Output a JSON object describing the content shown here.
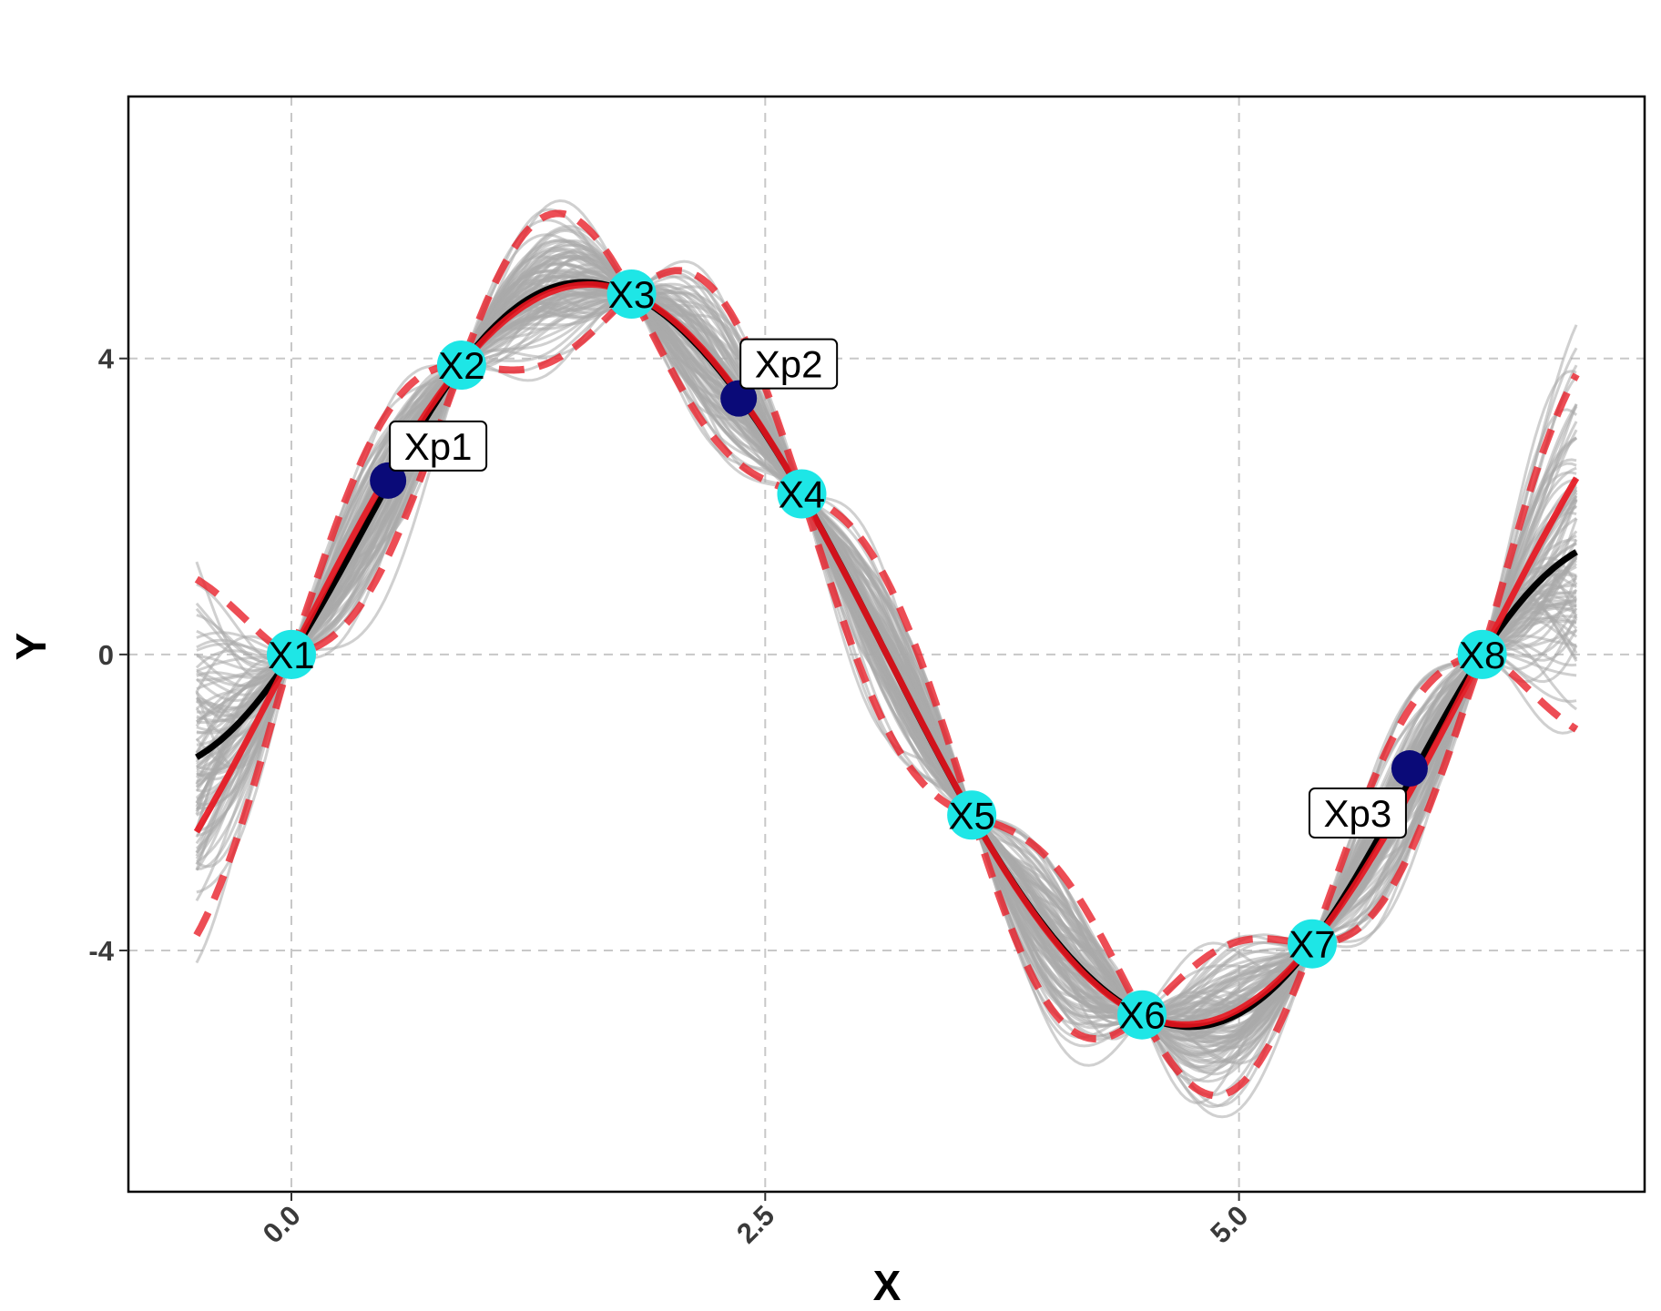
{
  "chart_data": {
    "type": "line",
    "title": "",
    "xlabel": "X",
    "ylabel": "Y",
    "xlim": [
      -0.86,
      7.14
    ],
    "ylim": [
      -7.26,
      7.54
    ],
    "grid": true,
    "x_ticks": [
      {
        "value": 0,
        "label": "0.0"
      },
      {
        "value": 2.5,
        "label": "2.5"
      },
      {
        "value": 5,
        "label": "5.0"
      }
    ],
    "y_ticks": [
      {
        "value": 4,
        "label": "4"
      },
      {
        "value": 0,
        "label": "0"
      },
      {
        "value": -4,
        "label": "-4"
      }
    ],
    "curve_domain": [
      -0.5,
      6.78
    ],
    "true_function": "5*sin(x)",
    "training_points": [
      {
        "label": "X1",
        "x": 0.0,
        "y": 0.0
      },
      {
        "label": "X2",
        "x": 0.898,
        "y": 3.91
      },
      {
        "label": "X3",
        "x": 1.795,
        "y": 4.87
      },
      {
        "label": "X4",
        "x": 2.693,
        "y": 2.17
      },
      {
        "label": "X5",
        "x": 3.59,
        "y": -2.17
      },
      {
        "label": "X6",
        "x": 4.488,
        "y": -4.87
      },
      {
        "label": "X7",
        "x": 5.386,
        "y": -3.91
      },
      {
        "label": "X8",
        "x": 6.283,
        "y": 0.0
      }
    ],
    "prediction_points": [
      {
        "label": "Xp1",
        "x": 0.51,
        "y": 2.35,
        "label_pos": "top-right"
      },
      {
        "label": "Xp2",
        "x": 2.36,
        "y": 3.46,
        "label_pos": "top-right"
      },
      {
        "label": "Xp3",
        "x": 5.9,
        "y": -1.54,
        "label_pos": "bottom-left"
      }
    ],
    "series": [
      {
        "name": "posterior-mean",
        "color": "#000000",
        "style": "solid"
      },
      {
        "name": "true-function",
        "color": "#e8141e",
        "style": "solid"
      },
      {
        "name": "confidence-band",
        "color": "#e8202a",
        "style": "dashed"
      },
      {
        "name": "posterior-samples",
        "color": "#aaaaaa",
        "style": "solid",
        "count": 100
      }
    ],
    "colors": {
      "training_point": "#1ee6e6",
      "prediction_point": "#0a0a78"
    }
  }
}
